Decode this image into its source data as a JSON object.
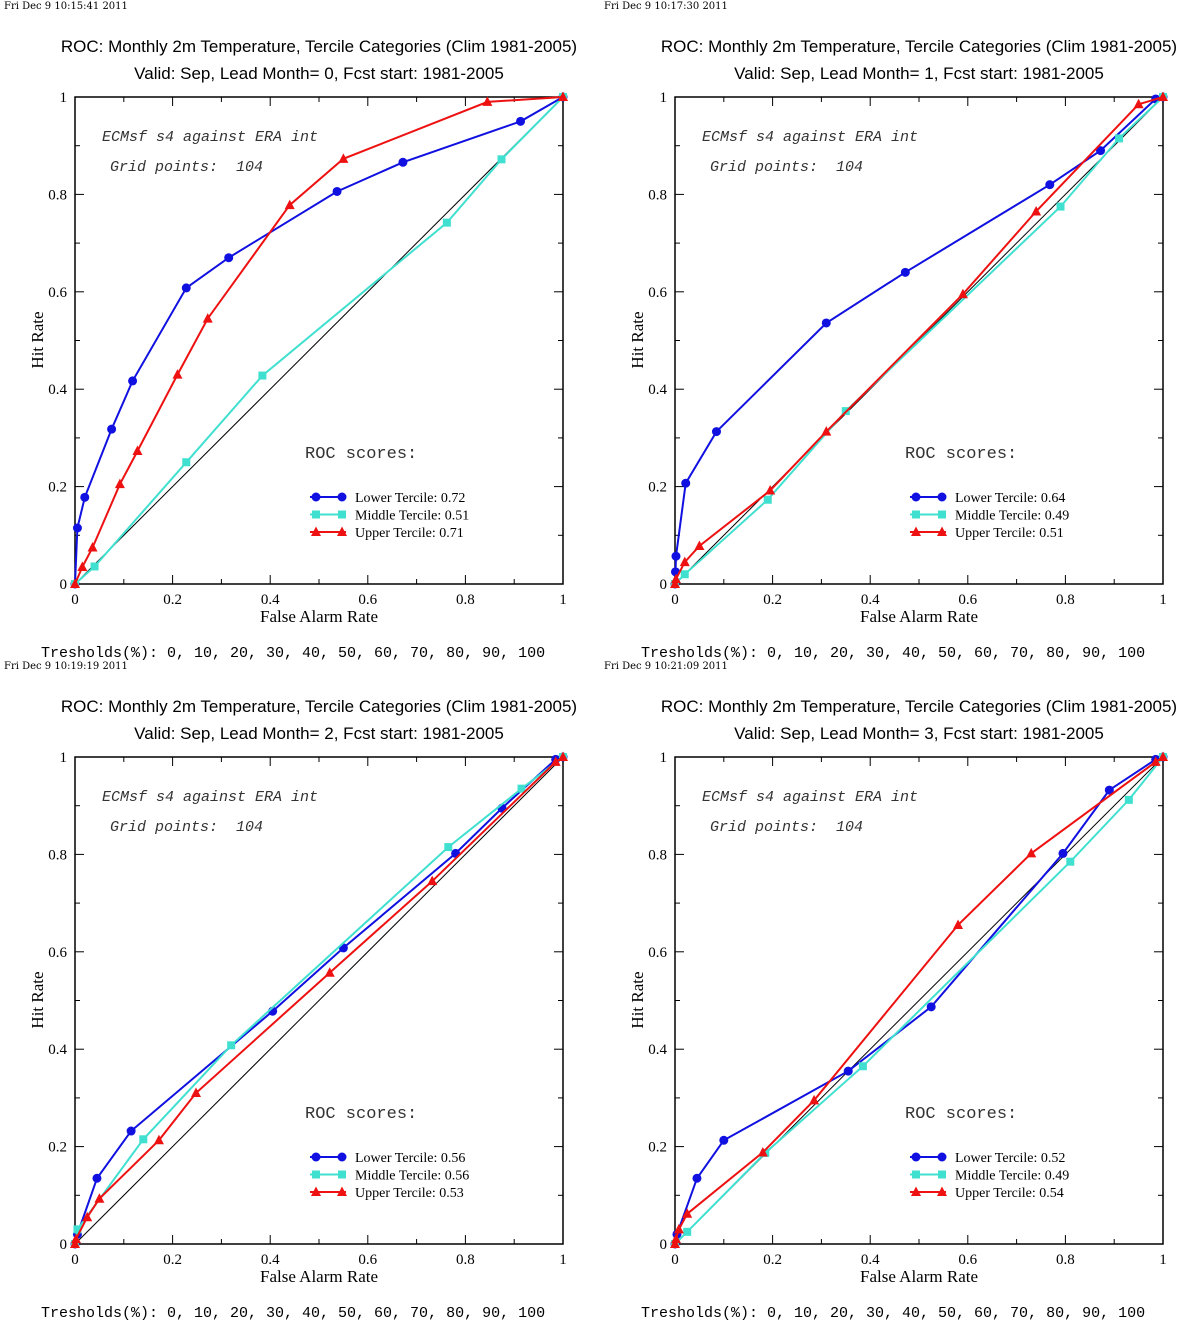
{
  "colors": {
    "lower": "#1010e0",
    "middle": "#40e0d0",
    "upper": "#ee1111",
    "diagonal": "#000000"
  },
  "chart_data": [
    {
      "type": "line",
      "timestamp": "Fri Dec  9 10:15:41 2011",
      "title": "ROC: Monthly 2m Temperature, Tercile Categories (Clim 1981-2005)",
      "subtitle": "Valid: Sep, Lead Month= 0, Fcst start: 1981-2005",
      "xlabel": "False Alarm Rate",
      "ylabel": "Hit Rate",
      "xlim": [
        0,
        1
      ],
      "ylim": [
        0,
        1
      ],
      "xticks": [
        "0",
        "0.2",
        "0.4",
        "0.6",
        "0.8",
        "1"
      ],
      "yticks": [
        "0",
        "0.2",
        "0.4",
        "0.6",
        "0.8",
        "1"
      ],
      "annotation_1": "ECMsf s4 against ERA int",
      "annotation_2": "Grid points:  104",
      "roc_header": "ROC scores:",
      "thresholds": "Tresholds(%): 0, 10, 20, 30, 40, 50, 60, 70, 80, 90, 100",
      "series": [
        {
          "name": "Lower Tercile: 0.72",
          "color": "#1010e0",
          "marker": "circle",
          "points": [
            [
              0,
              0
            ],
            [
              0.005,
              0.115
            ],
            [
              0.02,
              0.178
            ],
            [
              0.075,
              0.318
            ],
            [
              0.118,
              0.417
            ],
            [
              0.228,
              0.608
            ],
            [
              0.315,
              0.67
            ],
            [
              0.537,
              0.806
            ],
            [
              0.672,
              0.866
            ],
            [
              0.913,
              0.95
            ],
            [
              1,
              1
            ]
          ]
        },
        {
          "name": "Middle Tercile: 0.51",
          "color": "#40e0d0",
          "marker": "square",
          "points": [
            [
              0,
              0
            ],
            [
              0.04,
              0.036
            ],
            [
              0.228,
              0.25
            ],
            [
              0.384,
              0.428
            ],
            [
              0.762,
              0.742
            ],
            [
              0.874,
              0.872
            ],
            [
              1,
              1
            ]
          ]
        },
        {
          "name": "Upper Tercile: 0.71",
          "color": "#ee1111",
          "marker": "triangle",
          "points": [
            [
              0,
              0
            ],
            [
              0.015,
              0.035
            ],
            [
              0.036,
              0.075
            ],
            [
              0.092,
              0.205
            ],
            [
              0.128,
              0.273
            ],
            [
              0.21,
              0.43
            ],
            [
              0.272,
              0.545
            ],
            [
              0.44,
              0.778
            ],
            [
              0.55,
              0.873
            ],
            [
              0.845,
              0.99
            ],
            [
              1,
              1
            ]
          ]
        }
      ]
    },
    {
      "type": "line",
      "timestamp": "Fri Dec  9 10:17:30 2011",
      "title": "ROC: Monthly 2m Temperature, Tercile Categories (Clim 1981-2005)",
      "subtitle": "Valid: Sep, Lead Month= 1, Fcst start: 1981-2005",
      "xlabel": "False Alarm Rate",
      "ylabel": "Hit Rate",
      "xlim": [
        0,
        1
      ],
      "ylim": [
        0,
        1
      ],
      "xticks": [
        "0",
        "0.2",
        "0.4",
        "0.6",
        "0.8",
        "1"
      ],
      "yticks": [
        "0",
        "0.2",
        "0.4",
        "0.6",
        "0.8",
        "1"
      ],
      "annotation_1": "ECMsf s4 against ERA int",
      "annotation_2": "Grid points:  104",
      "roc_header": "ROC scores:",
      "thresholds": "Tresholds(%): 0, 10, 20, 30, 40, 50, 60, 70, 80, 90, 100",
      "series": [
        {
          "name": "Lower Tercile: 0.64",
          "color": "#1010e0",
          "marker": "circle",
          "points": [
            [
              0,
              0
            ],
            [
              0.001,
              0.025
            ],
            [
              0.002,
              0.057
            ],
            [
              0.022,
              0.207
            ],
            [
              0.085,
              0.313
            ],
            [
              0.31,
              0.536
            ],
            [
              0.472,
              0.64
            ],
            [
              0.768,
              0.82
            ],
            [
              0.872,
              0.89
            ],
            [
              0.985,
              0.996
            ],
            [
              1,
              1
            ]
          ]
        },
        {
          "name": "Middle Tercile: 0.49",
          "color": "#40e0d0",
          "marker": "square",
          "points": [
            [
              0,
              0
            ],
            [
              0.02,
              0.02
            ],
            [
              0.19,
              0.173
            ],
            [
              0.35,
              0.355
            ],
            [
              0.79,
              0.775
            ],
            [
              0.91,
              0.915
            ],
            [
              1,
              1
            ]
          ]
        },
        {
          "name": "Upper Tercile: 0.51",
          "color": "#ee1111",
          "marker": "triangle",
          "points": [
            [
              0,
              0
            ],
            [
              0.002,
              0.01
            ],
            [
              0.02,
              0.045
            ],
            [
              0.05,
              0.078
            ],
            [
              0.195,
              0.192
            ],
            [
              0.31,
              0.313
            ],
            [
              0.59,
              0.595
            ],
            [
              0.74,
              0.765
            ],
            [
              0.95,
              0.985
            ],
            [
              1,
              1
            ]
          ]
        }
      ]
    },
    {
      "type": "line",
      "timestamp": "Fri Dec  9 10:19:19 2011",
      "title": "ROC: Monthly 2m Temperature, Tercile Categories (Clim 1981-2005)",
      "subtitle": "Valid: Sep, Lead Month= 2, Fcst start: 1981-2005",
      "xlabel": "False Alarm Rate",
      "ylabel": "Hit Rate",
      "xlim": [
        0,
        1
      ],
      "ylim": [
        0,
        1
      ],
      "xticks": [
        "0",
        "0.2",
        "0.4",
        "0.6",
        "0.8",
        "1"
      ],
      "yticks": [
        "0",
        "0.2",
        "0.4",
        "0.6",
        "0.8",
        "1"
      ],
      "annotation_1": "ECMsf s4 against ERA int",
      "annotation_2": "Grid points:  104",
      "roc_header": "ROC scores:",
      "thresholds": "Tresholds(%): 0, 10, 20, 30, 40, 50, 60, 70, 80, 90, 100",
      "series": [
        {
          "name": "Lower Tercile: 0.56",
          "color": "#1010e0",
          "marker": "circle",
          "points": [
            [
              0,
              0
            ],
            [
              0.005,
              0.02
            ],
            [
              0.045,
              0.135
            ],
            [
              0.115,
              0.232
            ],
            [
              0.405,
              0.478
            ],
            [
              0.55,
              0.608
            ],
            [
              0.78,
              0.802
            ],
            [
              0.875,
              0.895
            ],
            [
              0.985,
              0.995
            ],
            [
              1,
              1
            ]
          ]
        },
        {
          "name": "Middle Tercile: 0.56",
          "color": "#40e0d0",
          "marker": "square",
          "points": [
            [
              0,
              0
            ],
            [
              0.005,
              0.03
            ],
            [
              0.14,
              0.215
            ],
            [
              0.32,
              0.408
            ],
            [
              0.765,
              0.815
            ],
            [
              0.915,
              0.935
            ],
            [
              1,
              1
            ]
          ]
        },
        {
          "name": "Upper Tercile: 0.53",
          "color": "#ee1111",
          "marker": "triangle",
          "points": [
            [
              0,
              0
            ],
            [
              0.002,
              0.01
            ],
            [
              0.025,
              0.055
            ],
            [
              0.05,
              0.093
            ],
            [
              0.172,
              0.213
            ],
            [
              0.248,
              0.31
            ],
            [
              0.522,
              0.557
            ],
            [
              0.732,
              0.745
            ],
            [
              0.985,
              0.99
            ],
            [
              1,
              1
            ]
          ]
        }
      ]
    },
    {
      "type": "line",
      "timestamp": "Fri Dec  9 10:21:09 2011",
      "title": "ROC: Monthly 2m Temperature, Tercile Categories (Clim 1981-2005)",
      "subtitle": "Valid: Sep, Lead Month= 3, Fcst start: 1981-2005",
      "xlabel": "False Alarm Rate",
      "ylabel": "Hit Rate",
      "xlim": [
        0,
        1
      ],
      "ylim": [
        0,
        1
      ],
      "xticks": [
        "0",
        "0.2",
        "0.4",
        "0.6",
        "0.8",
        "1"
      ],
      "yticks": [
        "0",
        "0.2",
        "0.4",
        "0.6",
        "0.8",
        "1"
      ],
      "annotation_1": "ECMsf s4 against ERA int",
      "annotation_2": "Grid points:  104",
      "roc_header": "ROC scores:",
      "thresholds": "Tresholds(%): 0, 10, 20, 30, 40, 50, 60, 70, 80, 90, 100",
      "series": [
        {
          "name": "Lower Tercile: 0.52",
          "color": "#1010e0",
          "marker": "circle",
          "points": [
            [
              0,
              0
            ],
            [
              0.004,
              0.02
            ],
            [
              0.045,
              0.135
            ],
            [
              0.1,
              0.213
            ],
            [
              0.355,
              0.355
            ],
            [
              0.525,
              0.487
            ],
            [
              0.795,
              0.802
            ],
            [
              0.89,
              0.932
            ],
            [
              0.985,
              0.995
            ],
            [
              1,
              1
            ]
          ]
        },
        {
          "name": "Middle Tercile: 0.49",
          "color": "#40e0d0",
          "marker": "square",
          "points": [
            [
              0,
              0
            ],
            [
              0.025,
              0.025
            ],
            [
              0.185,
              0.187
            ],
            [
              0.385,
              0.365
            ],
            [
              0.81,
              0.785
            ],
            [
              0.93,
              0.912
            ],
            [
              1,
              1
            ]
          ]
        },
        {
          "name": "Upper Tercile: 0.54",
          "color": "#ee1111",
          "marker": "triangle",
          "points": [
            [
              0,
              0
            ],
            [
              0.002,
              0.01
            ],
            [
              0.008,
              0.03
            ],
            [
              0.025,
              0.062
            ],
            [
              0.18,
              0.188
            ],
            [
              0.285,
              0.295
            ],
            [
              0.58,
              0.655
            ],
            [
              0.73,
              0.802
            ],
            [
              0.985,
              0.99
            ],
            [
              1,
              1
            ]
          ]
        }
      ]
    }
  ]
}
